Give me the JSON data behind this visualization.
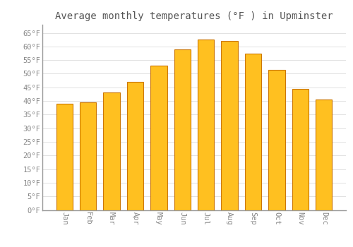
{
  "title": "Average monthly temperatures (°F ) in Upminster",
  "months": [
    "Jan",
    "Feb",
    "Mar",
    "Apr",
    "May",
    "Jun",
    "Jul",
    "Aug",
    "Sep",
    "Oct",
    "Nov",
    "Dec"
  ],
  "values": [
    39.0,
    39.5,
    43.2,
    47.0,
    53.0,
    59.0,
    62.5,
    62.0,
    57.5,
    51.5,
    44.5,
    40.5
  ],
  "bar_color": "#FFC020",
  "bar_edge_color": "#CC7700",
  "background_color": "#FFFFFF",
  "grid_color": "#DDDDDD",
  "text_color": "#888888",
  "title_color": "#555555",
  "ylim": [
    0,
    68
  ],
  "yticks": [
    0,
    5,
    10,
    15,
    20,
    25,
    30,
    35,
    40,
    45,
    50,
    55,
    60,
    65
  ],
  "ylabel_suffix": "°F",
  "title_fontsize": 10,
  "tick_fontsize": 7.5,
  "font_family": "monospace"
}
